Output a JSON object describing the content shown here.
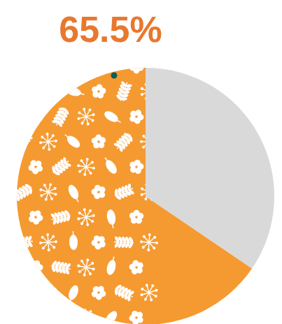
{
  "chart_data": {
    "type": "pie",
    "values": [
      65.5,
      34.5
    ],
    "value_labels": [
      "65.5%",
      null
    ],
    "colors": [
      "#f59a31",
      "#d9d9d9"
    ],
    "data_labels": true
  }
}
